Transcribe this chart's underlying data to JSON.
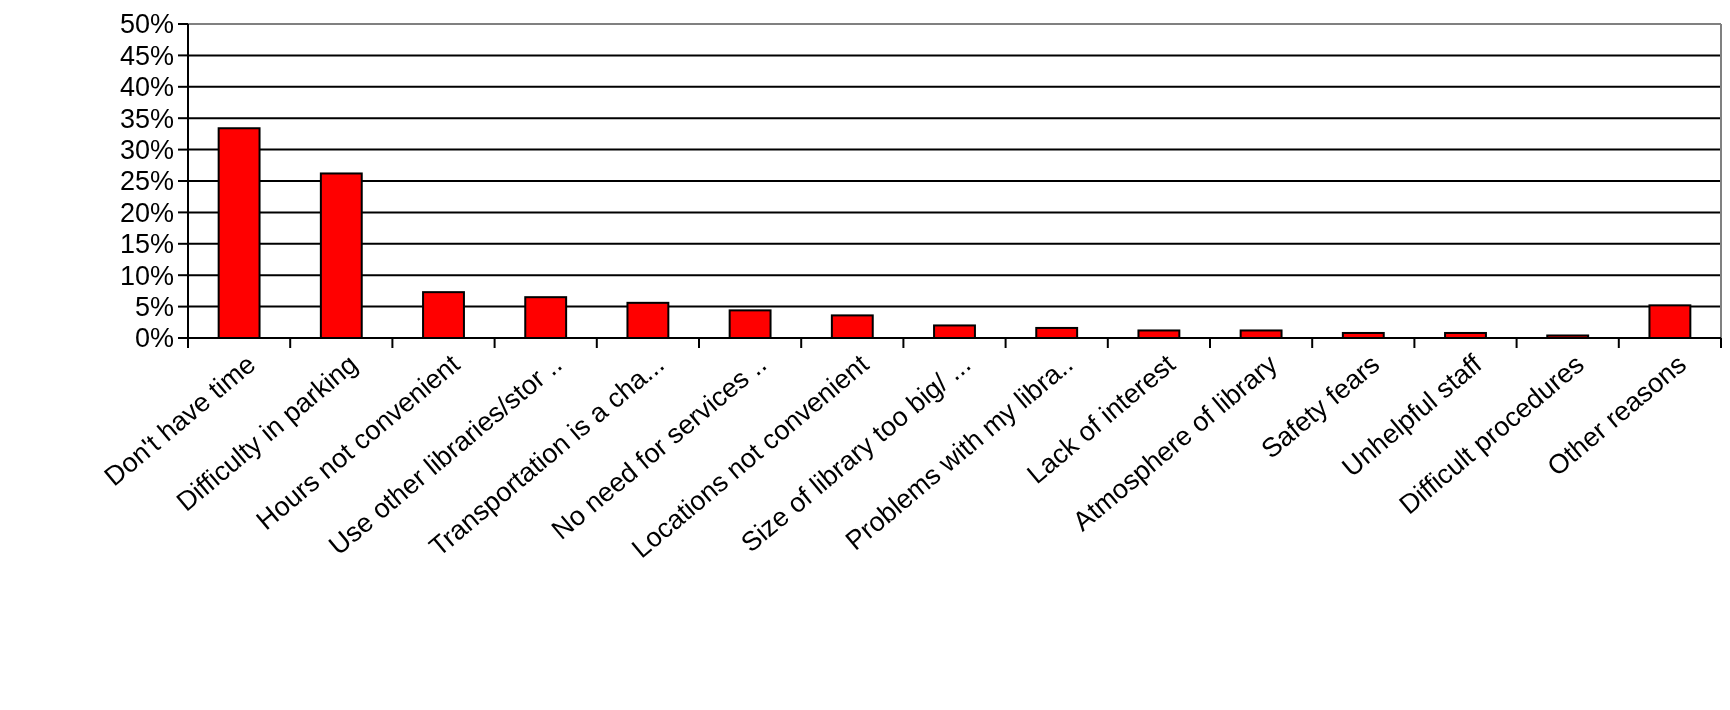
{
  "chart_data": {
    "type": "bar",
    "categories": [
      "Don't have time",
      "Difficulty in parking",
      "Hours not convenient",
      "Use other libraries/stor ..",
      "Transportation is a cha...",
      "No need for services ..",
      "Locations not convenient",
      "Size of library too big/ ...",
      "Problems with my libra..",
      "Lack of interest",
      "Atmosphere of library",
      "Safety fears",
      "Unhelpful staff",
      "Difficult procedures",
      "Other reasons"
    ],
    "values": [
      33.4,
      26.2,
      7.3,
      6.5,
      5.6,
      4.4,
      3.6,
      2.0,
      1.6,
      1.2,
      1.2,
      0.8,
      0.8,
      0.4,
      5.2
    ],
    "color": "#ff0000",
    "ylim": [
      0,
      50
    ],
    "yticks": [
      {
        "value": 0,
        "label": "0%"
      },
      {
        "value": 5,
        "label": "5%"
      },
      {
        "value": 10,
        "label": "10%"
      },
      {
        "value": 15,
        "label": "15%"
      },
      {
        "value": 20,
        "label": "20%"
      },
      {
        "value": 25,
        "label": "25%"
      },
      {
        "value": 30,
        "label": "30%"
      },
      {
        "value": 35,
        "label": "35%"
      },
      {
        "value": 40,
        "label": "40%"
      },
      {
        "value": 45,
        "label": "45%"
      },
      {
        "value": 50,
        "label": "50%"
      }
    ],
    "grid": "y"
  }
}
